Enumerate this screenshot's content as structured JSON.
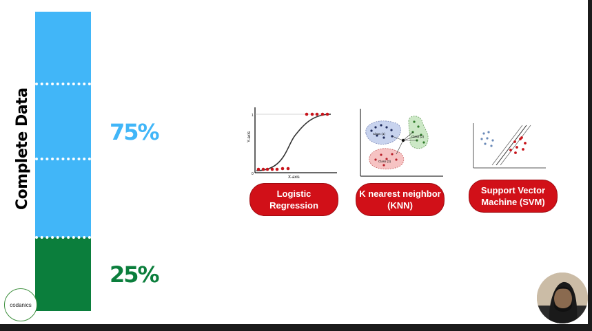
{
  "bar_label": "Complete Data",
  "splits": [
    {
      "label": "75%",
      "fraction": 0.75,
      "color": "#41b6f8"
    },
    {
      "label": "25%",
      "fraction": 0.25,
      "color": "#0b7e3c"
    }
  ],
  "algorithms": [
    {
      "name_line1": "Logistic",
      "name_line2": "Regression",
      "chart": {
        "ylabel": "Y-axis",
        "xlabel": "X-axis",
        "y_top": "1",
        "origin": "0"
      }
    },
    {
      "name_line1": "K nearest neighbor",
      "name_line2": "(KNN)",
      "chart": {
        "class_labels": [
          "Class (1)",
          "Class (2)",
          "Class (3)"
        ]
      }
    },
    {
      "name_line1": "Support Vector",
      "name_line2": "Machine (SVM)"
    }
  ],
  "logo": {
    "text": "codanics"
  },
  "colors": {
    "accent_red": "#d11018",
    "train_blue": "#41b6f8",
    "test_green": "#0b7e3c"
  }
}
